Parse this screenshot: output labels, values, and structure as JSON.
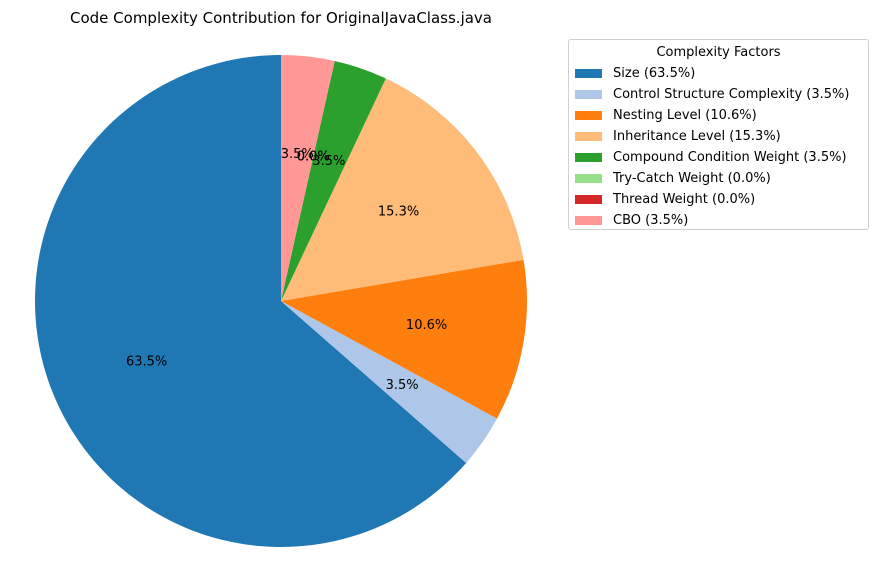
{
  "chart_data": {
    "type": "pie",
    "title": "Code Complexity Contribution for OriginalJavaClass.java",
    "legend_title": "Complexity Factors",
    "legend_position": "top-right",
    "start_angle_deg": 90,
    "direction": "counterclockwise",
    "slices": [
      {
        "name": "Size",
        "value": 63.5,
        "label": "63.5%",
        "legend": "Size (63.5%)",
        "color": "#1f77b4"
      },
      {
        "name": "Control Structure Complexity",
        "value": 3.5,
        "label": "3.5%",
        "legend": "Control Structure Complexity (3.5%)",
        "color": "#aec7e8"
      },
      {
        "name": "Nesting Level",
        "value": 10.6,
        "label": "10.6%",
        "legend": "Nesting Level (10.6%)",
        "color": "#ff7f0e"
      },
      {
        "name": "Inheritance Level",
        "value": 15.3,
        "label": "15.3%",
        "legend": "Inheritance Level (15.3%)",
        "color": "#ffbb78"
      },
      {
        "name": "Compound Condition Weight",
        "value": 3.5,
        "label": "3.5%",
        "legend": "Compound Condition Weight (3.5%)",
        "color": "#2ca02c"
      },
      {
        "name": "Try-Catch Weight",
        "value": 0.0,
        "label": "0.0%",
        "legend": "Try-Catch Weight (0.0%)",
        "color": "#98df8a"
      },
      {
        "name": "Thread Weight",
        "value": 0.0,
        "label": "0.0%",
        "legend": "Thread Weight (0.0%)",
        "color": "#d62728"
      },
      {
        "name": "CBO",
        "value": 3.5,
        "label": "3.5%",
        "legend": "CBO (3.5%)",
        "color": "#ff9896"
      }
    ]
  }
}
